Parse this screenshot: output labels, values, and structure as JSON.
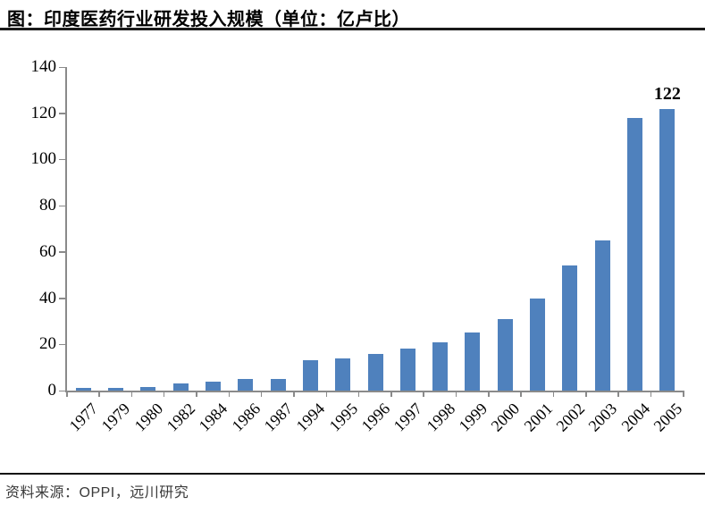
{
  "header": {
    "title": "图：印度医药行业研发投入规模（单位：亿卢比）"
  },
  "footer": {
    "source": "资料来源：OPPI，远川研究"
  },
  "chart_data": {
    "type": "bar",
    "title": "图：印度医药行业研发投入规模（单位：亿卢比）",
    "categories": [
      "1977",
      "1979",
      "1980",
      "1982",
      "1984",
      "1986",
      "1987",
      "1994",
      "1995",
      "1996",
      "1997",
      "1998",
      "1999",
      "2000",
      "2001",
      "2002",
      "2003",
      "2004",
      "2005"
    ],
    "values": [
      1,
      1,
      1.5,
      3,
      4,
      5,
      5,
      13,
      14,
      16,
      18,
      21,
      25,
      31,
      40,
      54,
      65,
      118,
      122
    ],
    "xlabel": "",
    "ylabel": "",
    "ylim": [
      0,
      140
    ],
    "yticks": [
      0,
      20,
      40,
      60,
      80,
      100,
      120,
      140
    ],
    "grid": false,
    "legend_position": "none",
    "annotation": {
      "category": "2005",
      "text": "122"
    },
    "bar_color": "#4f81bd",
    "axis_color": "#8a8a8a",
    "text_color": "#000000"
  }
}
